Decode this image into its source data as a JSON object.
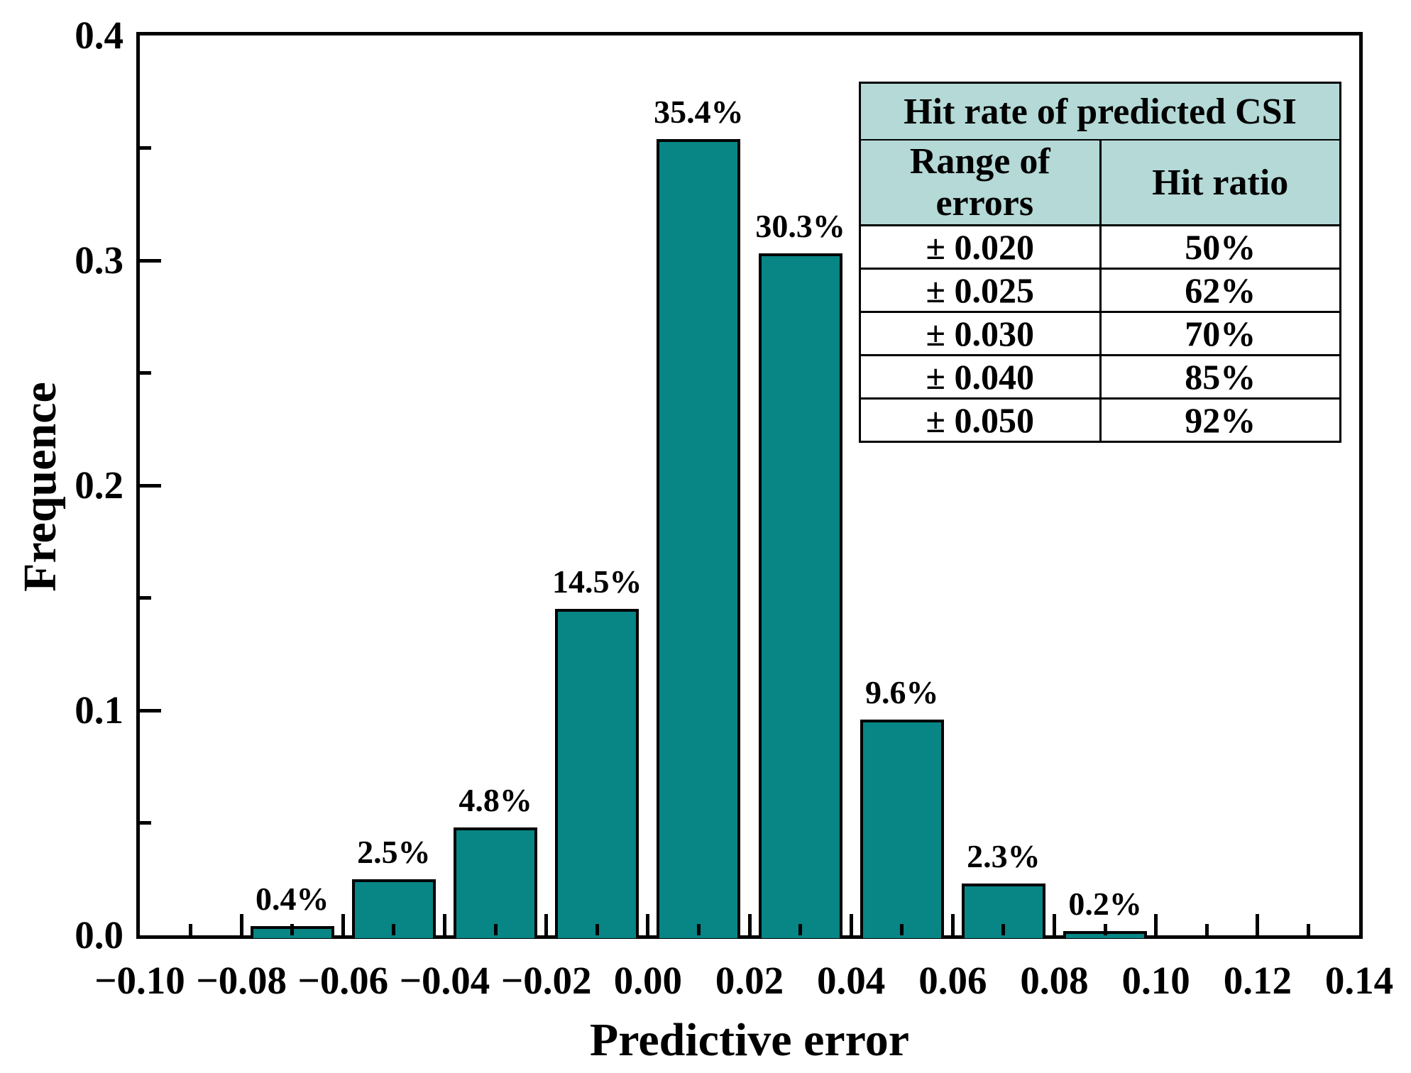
{
  "chart_data": {
    "type": "bar",
    "title": "",
    "xlabel": "Predictive error",
    "ylabel": "Frequence",
    "xlim": [
      -0.1,
      0.14
    ],
    "ylim": [
      0,
      0.4
    ],
    "grid": false,
    "x_major_tick_step": 0.02,
    "x_minor_tick_step": 0.01,
    "y_major_tick_step": 0.1,
    "y_minor_tick_step": 0.05,
    "x_tick_labels": [
      "−0.10",
      "−0.08",
      "−0.06",
      "−0.04",
      "−0.02",
      "0.00",
      "0.02",
      "0.04",
      "0.06",
      "0.08",
      "0.10",
      "0.12",
      "0.14"
    ],
    "x_tick_values": [
      -0.1,
      -0.08,
      -0.06,
      -0.04,
      -0.02,
      0.0,
      0.02,
      0.04,
      0.06,
      0.08,
      0.1,
      0.12,
      0.14
    ],
    "y_tick_labels": [
      "0.0",
      "0.1",
      "0.2",
      "0.3",
      "0.4"
    ],
    "y_tick_values": [
      0,
      0.1,
      0.2,
      0.3,
      0.4
    ],
    "bar_width": 0.0165,
    "bar_color": "#088585",
    "bars": [
      {
        "x": -0.07,
        "value": 0.004,
        "label": "0.4%"
      },
      {
        "x": -0.05,
        "value": 0.025,
        "label": "2.5%"
      },
      {
        "x": -0.03,
        "value": 0.048,
        "label": "4.8%"
      },
      {
        "x": -0.01,
        "value": 0.145,
        "label": "14.5%"
      },
      {
        "x": 0.01,
        "value": 0.354,
        "label": "35.4%"
      },
      {
        "x": 0.03,
        "value": 0.303,
        "label": "30.3%"
      },
      {
        "x": 0.05,
        "value": 0.096,
        "label": "9.6%"
      },
      {
        "x": 0.07,
        "value": 0.023,
        "label": "2.3%"
      },
      {
        "x": 0.09,
        "value": 0.002,
        "label": "0.2%"
      }
    ]
  },
  "inset_table": {
    "title": "Hit rate of predicted CSI",
    "columns": [
      "Range of  errors",
      "Hit ratio"
    ],
    "header_bg": "#b4d9d7",
    "rows": [
      {
        "range": "± 0.020",
        "hit_ratio": "50%"
      },
      {
        "range": "± 0.025",
        "hit_ratio": "62%"
      },
      {
        "range": "± 0.030",
        "hit_ratio": "70%"
      },
      {
        "range": "± 0.040",
        "hit_ratio": "85%"
      },
      {
        "range": "± 0.050",
        "hit_ratio": "92%"
      }
    ]
  }
}
